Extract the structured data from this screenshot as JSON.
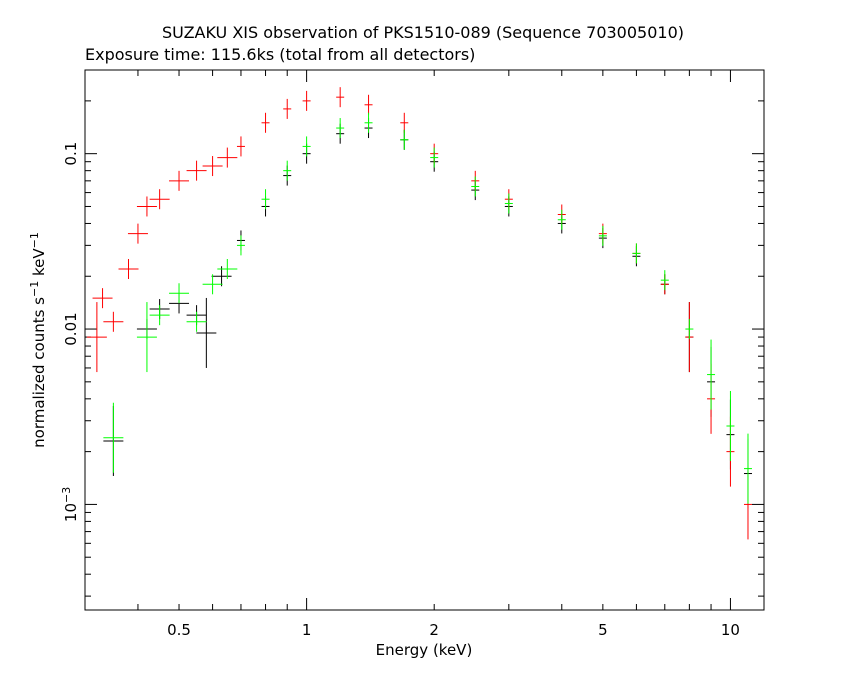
{
  "chart_data": {
    "type": "scatter",
    "title": "SUZAKU XIS observation of PKS1510-089 (Sequence 703005010)",
    "subtitle": "Exposure time: 115.6ks (total from all detectors)",
    "xlabel": "Energy (keV)",
    "ylabel": {
      "base": "normalized counts s",
      "sup1": "−1",
      "mid": " keV",
      "sup2": "−1"
    },
    "xscale": "log",
    "yscale": "log",
    "xlim": [
      0.3,
      12
    ],
    "ylim": [
      0.00025,
      0.3
    ],
    "x_ticks": [
      {
        "value": 0.5,
        "label": "0.5"
      },
      {
        "value": 1,
        "label": "1"
      },
      {
        "value": 2,
        "label": "2"
      },
      {
        "value": 5,
        "label": "5"
      },
      {
        "value": 10,
        "label": "10"
      }
    ],
    "y_ticks": [
      {
        "value": 0.1,
        "label": "0.1"
      },
      {
        "value": 0.01,
        "label": "0.01"
      },
      {
        "value": 0.001,
        "label": "10",
        "sup": "−3"
      }
    ],
    "grid": false,
    "legend": "none",
    "series": [
      {
        "color": "#000000",
        "points": [
          {
            "x": 0.35,
            "y": 0.0023
          },
          {
            "x": 0.42,
            "y": 0.01
          },
          {
            "x": 0.45,
            "y": 0.013
          },
          {
            "x": 0.5,
            "y": 0.014
          },
          {
            "x": 0.55,
            "y": 0.012
          },
          {
            "x": 0.58,
            "y": 0.0095
          },
          {
            "x": 0.63,
            "y": 0.02
          },
          {
            "x": 0.7,
            "y": 0.032
          },
          {
            "x": 0.8,
            "y": 0.05
          },
          {
            "x": 0.9,
            "y": 0.075
          },
          {
            "x": 1.0,
            "y": 0.1
          },
          {
            "x": 1.2,
            "y": 0.13
          },
          {
            "x": 1.4,
            "y": 0.14
          },
          {
            "x": 1.7,
            "y": 0.12
          },
          {
            "x": 2.0,
            "y": 0.09
          },
          {
            "x": 2.5,
            "y": 0.062
          },
          {
            "x": 3.0,
            "y": 0.05
          },
          {
            "x": 4.0,
            "y": 0.04
          },
          {
            "x": 5.0,
            "y": 0.033
          },
          {
            "x": 6.0,
            "y": 0.026
          },
          {
            "x": 7.0,
            "y": 0.018
          },
          {
            "x": 8.0,
            "y": 0.009
          },
          {
            "x": 9.0,
            "y": 0.005
          },
          {
            "x": 10.0,
            "y": 0.0025
          },
          {
            "x": 11.0,
            "y": 0.0015
          }
        ]
      },
      {
        "color": "#ff0000",
        "points": [
          {
            "x": 0.32,
            "y": 0.009
          },
          {
            "x": 0.33,
            "y": 0.015
          },
          {
            "x": 0.35,
            "y": 0.011
          },
          {
            "x": 0.38,
            "y": 0.022
          },
          {
            "x": 0.4,
            "y": 0.035
          },
          {
            "x": 0.42,
            "y": 0.05
          },
          {
            "x": 0.45,
            "y": 0.055
          },
          {
            "x": 0.5,
            "y": 0.07
          },
          {
            "x": 0.55,
            "y": 0.08
          },
          {
            "x": 0.6,
            "y": 0.085
          },
          {
            "x": 0.65,
            "y": 0.095
          },
          {
            "x": 0.7,
            "y": 0.11
          },
          {
            "x": 0.8,
            "y": 0.15
          },
          {
            "x": 0.9,
            "y": 0.18
          },
          {
            "x": 1.0,
            "y": 0.2
          },
          {
            "x": 1.2,
            "y": 0.21
          },
          {
            "x": 1.4,
            "y": 0.19
          },
          {
            "x": 1.7,
            "y": 0.15
          },
          {
            "x": 2.0,
            "y": 0.1
          },
          {
            "x": 2.5,
            "y": 0.07
          },
          {
            "x": 3.0,
            "y": 0.055
          },
          {
            "x": 4.0,
            "y": 0.045
          },
          {
            "x": 5.0,
            "y": 0.035
          },
          {
            "x": 6.0,
            "y": 0.027
          },
          {
            "x": 7.0,
            "y": 0.018
          },
          {
            "x": 8.0,
            "y": 0.009
          },
          {
            "x": 9.0,
            "y": 0.004
          },
          {
            "x": 10.0,
            "y": 0.002
          },
          {
            "x": 11.0,
            "y": 0.001
          }
        ]
      },
      {
        "color": "#00ff00",
        "points": [
          {
            "x": 0.35,
            "y": 0.0024
          },
          {
            "x": 0.42,
            "y": 0.009
          },
          {
            "x": 0.45,
            "y": 0.012
          },
          {
            "x": 0.5,
            "y": 0.016
          },
          {
            "x": 0.55,
            "y": 0.011
          },
          {
            "x": 0.6,
            "y": 0.018
          },
          {
            "x": 0.65,
            "y": 0.022
          },
          {
            "x": 0.7,
            "y": 0.03
          },
          {
            "x": 0.8,
            "y": 0.055
          },
          {
            "x": 0.9,
            "y": 0.08
          },
          {
            "x": 1.0,
            "y": 0.11
          },
          {
            "x": 1.2,
            "y": 0.14
          },
          {
            "x": 1.4,
            "y": 0.15
          },
          {
            "x": 1.7,
            "y": 0.12
          },
          {
            "x": 2.0,
            "y": 0.095
          },
          {
            "x": 2.5,
            "y": 0.065
          },
          {
            "x": 3.0,
            "y": 0.052
          },
          {
            "x": 4.0,
            "y": 0.042
          },
          {
            "x": 5.0,
            "y": 0.034
          },
          {
            "x": 6.0,
            "y": 0.027
          },
          {
            "x": 7.0,
            "y": 0.019
          },
          {
            "x": 8.0,
            "y": 0.01
          },
          {
            "x": 9.0,
            "y": 0.0055
          },
          {
            "x": 10.0,
            "y": 0.0028
          },
          {
            "x": 11.0,
            "y": 0.0016
          }
        ]
      }
    ]
  }
}
